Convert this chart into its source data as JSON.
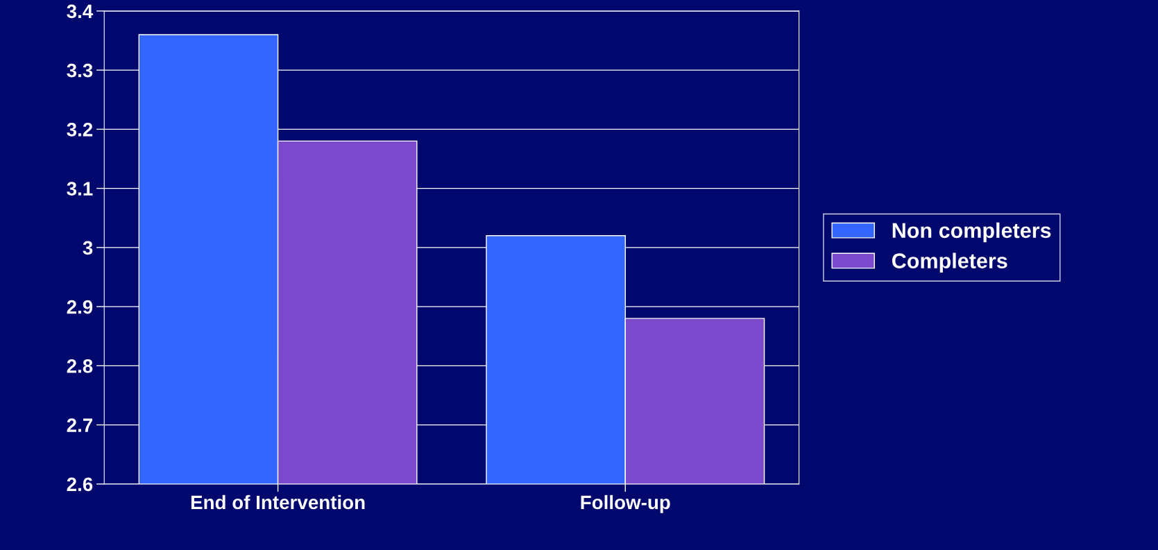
{
  "chart_data": {
    "type": "bar",
    "categories": [
      "End of Intervention",
      "Follow-up"
    ],
    "series": [
      {
        "name": "Non completers",
        "color": "#3366ff",
        "values": [
          3.36,
          3.02
        ]
      },
      {
        "name": "Completers",
        "color": "#7b4acc",
        "values": [
          3.18,
          2.88
        ]
      }
    ],
    "ylim": [
      2.6,
      3.4
    ],
    "yticks": [
      2.6,
      2.7,
      2.8,
      2.9,
      3,
      3.1,
      3.2,
      3.3,
      3.4
    ],
    "grid": "y",
    "legend": "right"
  }
}
